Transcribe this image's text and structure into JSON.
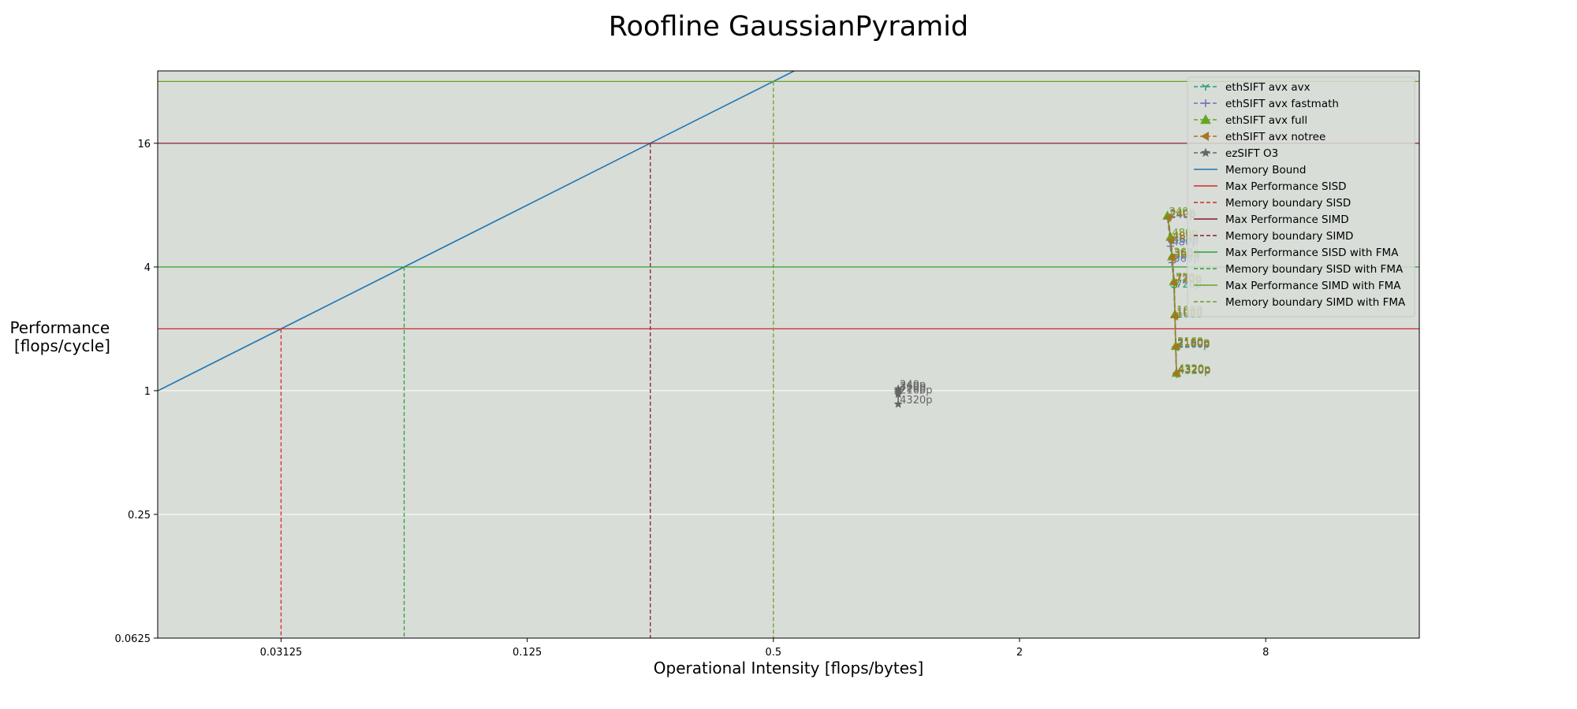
{
  "chart_data": {
    "type": "line",
    "title": "Roofline GaussianPyramid",
    "xlabel": "Operational Intensity [flops/bytes]",
    "ylabel": [
      "Performance",
      "[flops/cycle]"
    ],
    "x_scale": "log2",
    "y_scale": "log2",
    "xlim": [
      0.0156,
      19.0
    ],
    "ylim": [
      0.0625,
      36.0
    ],
    "x_ticks": [
      {
        "value": 0.03125,
        "label": "0.03125"
      },
      {
        "value": 0.125,
        "label": "0.125"
      },
      {
        "value": 0.5,
        "label": "0.5"
      },
      {
        "value": 2,
        "label": "2"
      },
      {
        "value": 8,
        "label": "8"
      }
    ],
    "y_ticks": [
      {
        "value": 0.0625,
        "label": "0.0625"
      },
      {
        "value": 0.25,
        "label": "0.25"
      },
      {
        "value": 1,
        "label": "1"
      },
      {
        "value": 4,
        "label": "4"
      },
      {
        "value": 16,
        "label": "16"
      }
    ],
    "grid": "horizontal",
    "background": "#d8ddd8",
    "legend_position": "upper-right",
    "series": [
      {
        "name": "ethSIFT avx avx",
        "color": "#2a9a74",
        "marker": "tri-down",
        "dash": "dashed",
        "points": [
          {
            "x": 4.62,
            "y": 6.9,
            "label": "240p"
          },
          {
            "x": 4.7,
            "y": 5.2,
            "label": "480p"
          },
          {
            "x": 4.73,
            "y": 4.35,
            "label": "360p"
          },
          {
            "x": 4.78,
            "y": 3.15,
            "label": "720p"
          },
          {
            "x": 4.8,
            "y": 2.25,
            "label": "1080"
          },
          {
            "x": 4.82,
            "y": 1.6,
            "label": "2160p"
          },
          {
            "x": 4.84,
            "y": 1.2,
            "label": "4320p"
          }
        ]
      },
      {
        "name": "ethSIFT avx fastmath",
        "color": "#7570b3",
        "marker": "plus",
        "dash": "dashed",
        "points": [
          {
            "x": 4.61,
            "y": 6.85,
            "label": "240p"
          },
          {
            "x": 4.68,
            "y": 5.05,
            "label": "480p"
          },
          {
            "x": 4.72,
            "y": 4.2,
            "label": "360p"
          },
          {
            "x": 4.77,
            "y": 3.3,
            "label": "720p"
          },
          {
            "x": 4.8,
            "y": 2.3,
            "label": "1080"
          },
          {
            "x": 4.82,
            "y": 1.62,
            "label": "2160p"
          },
          {
            "x": 4.84,
            "y": 1.22,
            "label": "4320p"
          }
        ]
      },
      {
        "name": "ethSIFT avx full",
        "color": "#66a61e",
        "marker": "tri-up",
        "dash": "dashed",
        "points": [
          {
            "x": 4.6,
            "y": 7.1,
            "label": "240p"
          },
          {
            "x": 4.68,
            "y": 5.6,
            "label": "480p"
          },
          {
            "x": 4.72,
            "y": 4.5,
            "label": "360p"
          },
          {
            "x": 4.77,
            "y": 3.4,
            "label": "720p"
          },
          {
            "x": 4.8,
            "y": 2.35,
            "label": "1080"
          },
          {
            "x": 4.82,
            "y": 1.65,
            "label": "2160p"
          },
          {
            "x": 4.84,
            "y": 1.22,
            "label": "4320p"
          }
        ]
      },
      {
        "name": "ethSIFT avx notree",
        "color": "#a6761d",
        "marker": "tri-left",
        "dash": "dashed",
        "points": [
          {
            "x": 4.62,
            "y": 6.95,
            "label": "240p"
          },
          {
            "x": 4.69,
            "y": 5.4,
            "label": "480p"
          },
          {
            "x": 4.73,
            "y": 4.45,
            "label": "360p"
          },
          {
            "x": 4.78,
            "y": 3.35,
            "label": "720p"
          },
          {
            "x": 4.8,
            "y": 2.3,
            "label": "1080"
          },
          {
            "x": 4.82,
            "y": 1.63,
            "label": "2160p"
          },
          {
            "x": 4.84,
            "y": 1.21,
            "label": "4320p"
          }
        ]
      },
      {
        "name": "ezSIFT O3",
        "color": "#666666",
        "marker": "star",
        "dash": "dashed",
        "points": [
          {
            "x": 1.01,
            "y": 1.02,
            "label": "240p"
          },
          {
            "x": 1.01,
            "y": 1.0,
            "label": "360p"
          },
          {
            "x": 1.01,
            "y": 0.98,
            "label": "720p"
          },
          {
            "x": 1.01,
            "y": 0.96,
            "label": "2160p"
          },
          {
            "x": 1.01,
            "y": 0.86,
            "label": "4320p"
          }
        ]
      }
    ],
    "lines": [
      {
        "name": "Memory Bound",
        "color": "#1f77b4",
        "style": "solid",
        "kind": "diagonal",
        "slope_bytes_per_cycle": 64
      },
      {
        "name": "Max Performance SISD",
        "color": "#d62728",
        "style": "solid",
        "kind": "horizontal",
        "y": 2
      },
      {
        "name": "Memory boundary SISD",
        "color": "#d62728",
        "style": "dashed",
        "kind": "vertical",
        "x": 0.03125,
        "y": 2
      },
      {
        "name": "Max Performance SIMD",
        "color": "#8c1a2f",
        "style": "solid",
        "kind": "horizontal",
        "y": 16
      },
      {
        "name": "Memory boundary SIMD",
        "color": "#8c1a2f",
        "style": "dashed",
        "kind": "vertical",
        "x": 0.25,
        "y": 16
      },
      {
        "name": "Max Performance SISD with FMA",
        "color": "#2ca02c",
        "style": "solid",
        "kind": "horizontal",
        "y": 4
      },
      {
        "name": "Memory boundary SISD with FMA",
        "color": "#2ca02c",
        "style": "dashed",
        "kind": "vertical",
        "x": 0.0625,
        "y": 4
      },
      {
        "name": "Max Performance SIMD with FMA",
        "color": "#6aa11e",
        "style": "solid",
        "kind": "horizontal",
        "y": 32
      },
      {
        "name": "Memory boundary SIMD with FMA",
        "color": "#6aa11e",
        "style": "dashed",
        "kind": "vertical",
        "x": 0.5,
        "y": 32
      }
    ]
  }
}
